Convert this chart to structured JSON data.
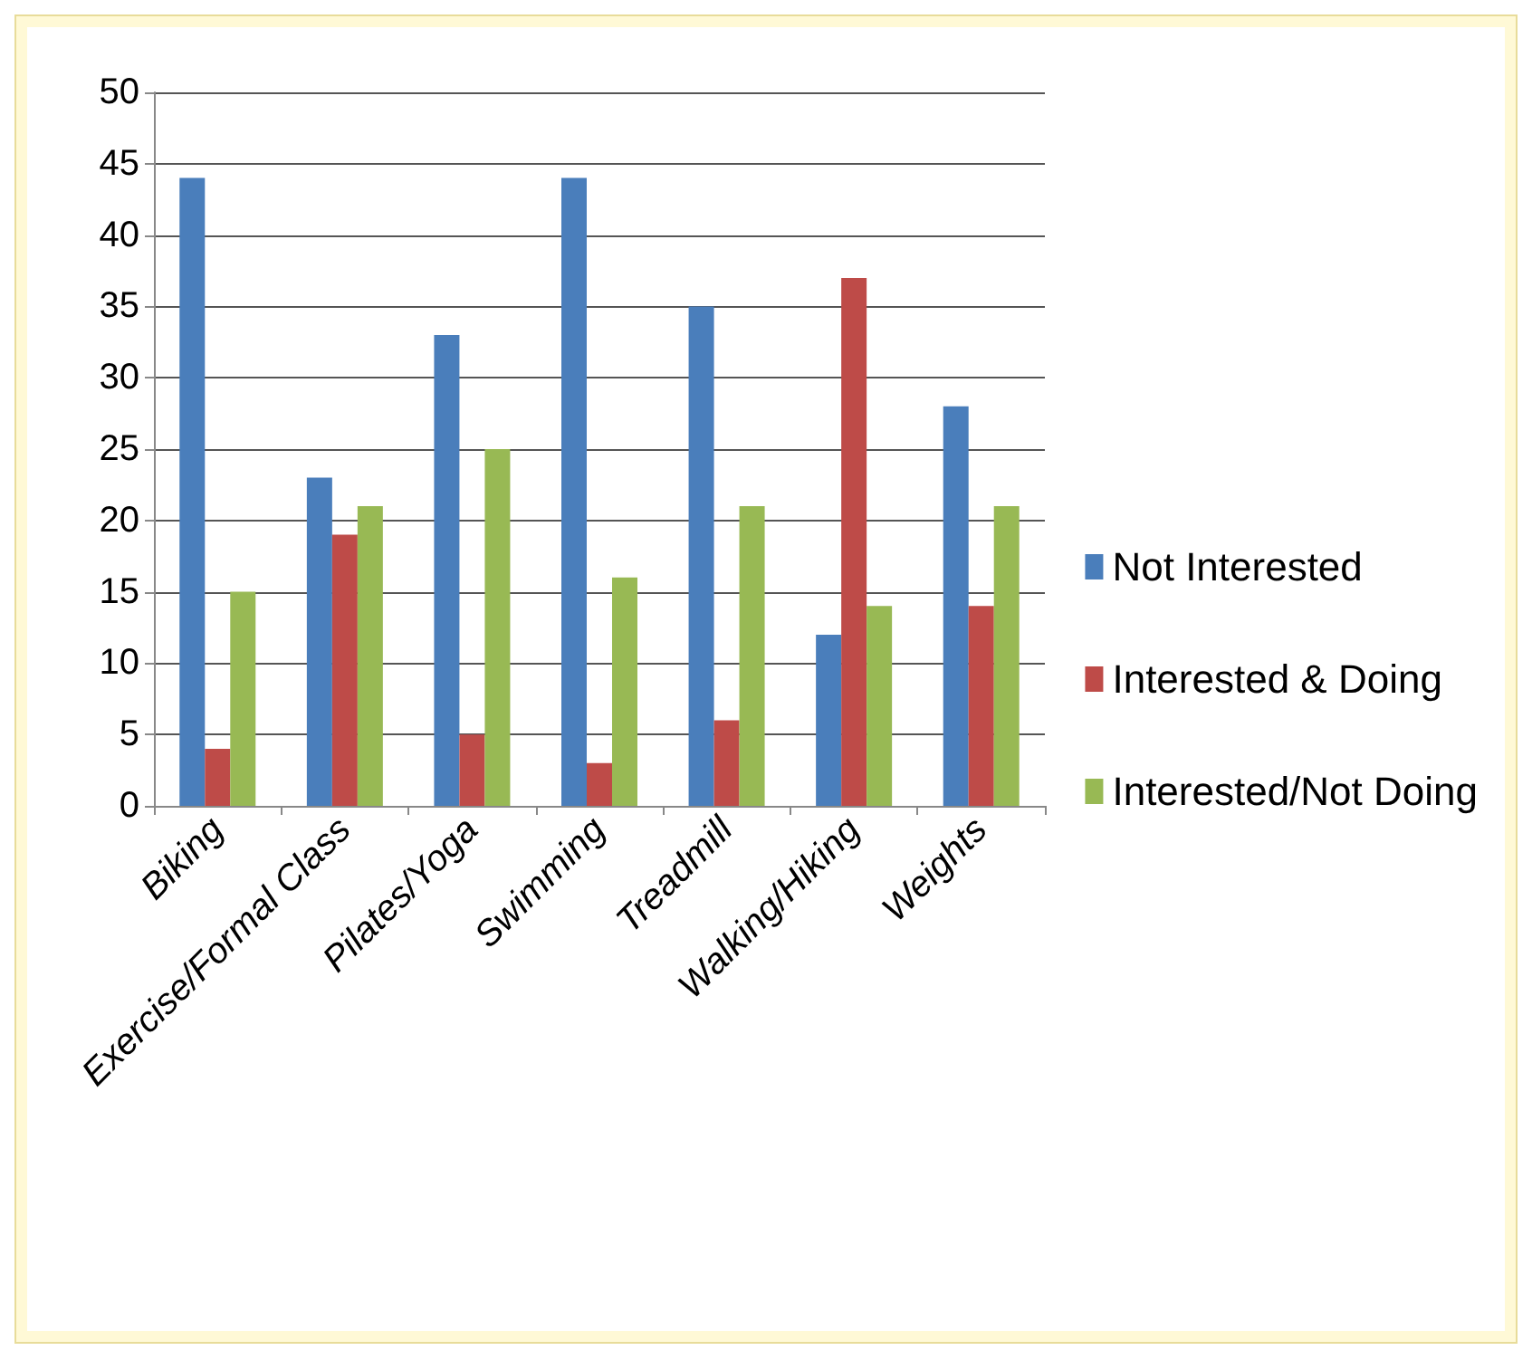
{
  "chart_data": {
    "type": "bar",
    "categories": [
      "Biking",
      "Exercise/Formal Class",
      "Pilates/Yoga",
      "Swimming",
      "Treadmill",
      "Walking/Hiking",
      "Weights"
    ],
    "series": [
      {
        "name": "Not Interested",
        "color": "#4a7ebb",
        "values": [
          44,
          23,
          33,
          44,
          35,
          12,
          28
        ]
      },
      {
        "name": "Interested & Doing",
        "color": "#be4b48",
        "values": [
          4,
          19,
          5,
          3,
          6,
          37,
          14
        ]
      },
      {
        "name": "Interested/Not Doing",
        "color": "#98b954",
        "values": [
          15,
          21,
          25,
          16,
          21,
          14,
          21
        ]
      }
    ],
    "ylim": [
      0,
      50
    ],
    "yticks": [
      0,
      5,
      10,
      15,
      20,
      25,
      30,
      35,
      40,
      45,
      50
    ],
    "grid": "y",
    "legend": "right"
  }
}
